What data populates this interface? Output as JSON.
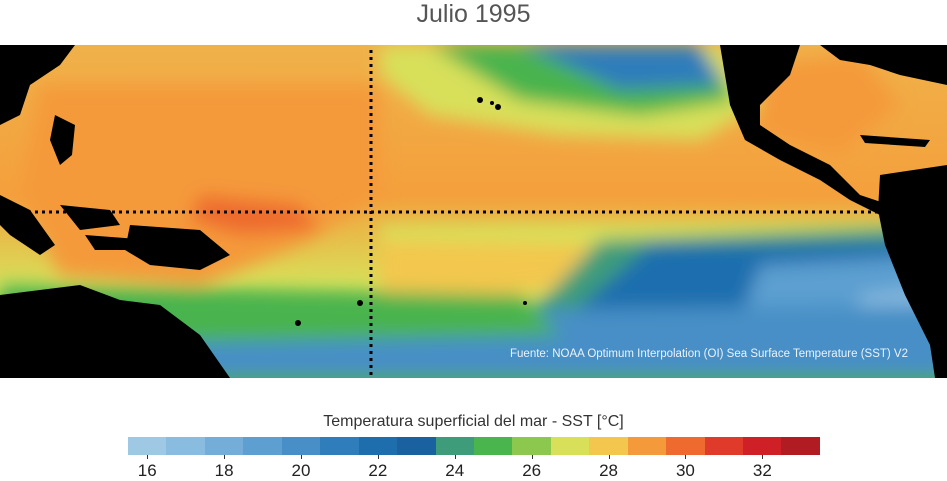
{
  "title": "Julio 1995",
  "source": "Fuente: NOAA Optimum Interpolation (OI) Sea Surface Temperature (SST) V2",
  "colorbar": {
    "label": "Temperatura superficial del mar - SST  [°C]",
    "colors": [
      "#9ec8e4",
      "#8abce0",
      "#74aed8",
      "#5c9fd0",
      "#478fc6",
      "#2f7dbb",
      "#1e6eae",
      "#1a629f",
      "#3e9c7a",
      "#4ab44d",
      "#8cc84e",
      "#d8e05a",
      "#f3c74e",
      "#f49a3a",
      "#ee6a2e",
      "#df3a2a",
      "#cf1f27",
      "#b01c22"
    ],
    "tick_labels": [
      "16",
      "18",
      "20",
      "22",
      "24",
      "26",
      "28",
      "30",
      "32"
    ]
  }
}
